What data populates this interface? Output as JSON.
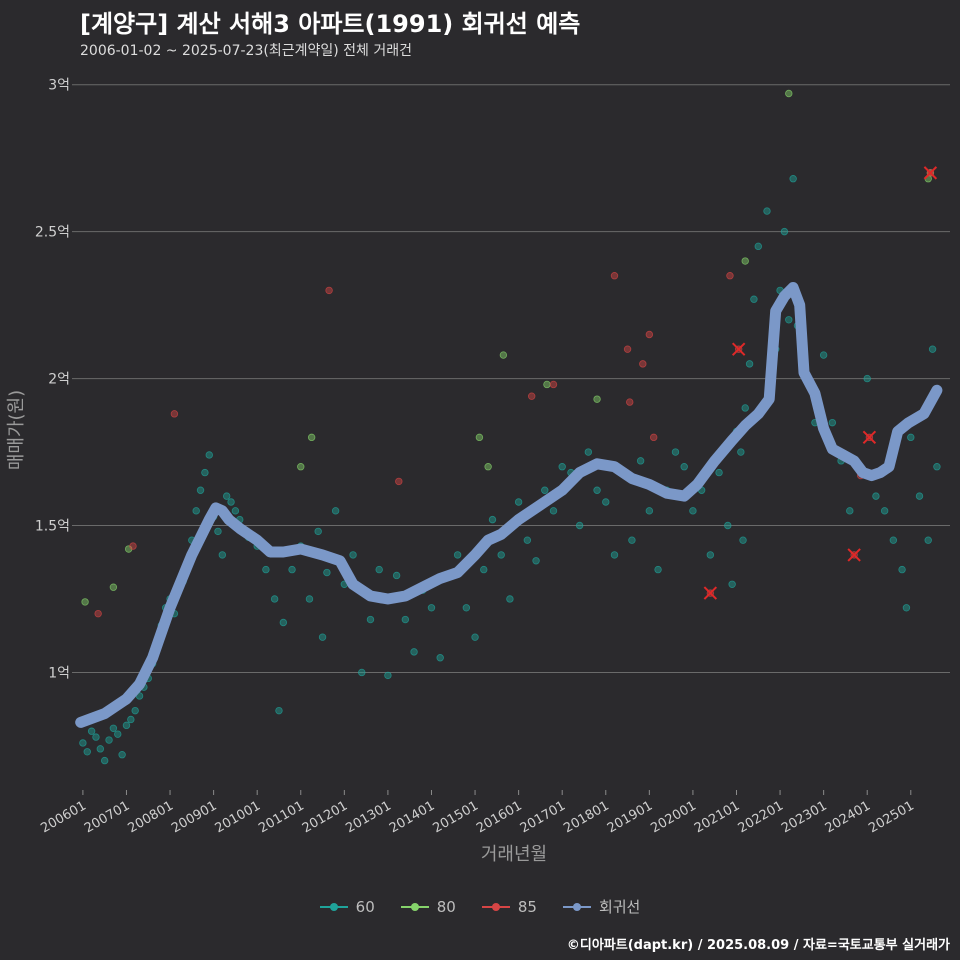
{
  "header": {
    "title": "[계양구] 계산 서해3 아파트(1991) 회귀선 예측",
    "subtitle": "2006-01-02 ~ 2025-07-23(최근계약일) 전체 거래건"
  },
  "footer": {
    "credit": "©디아파트(dapt.kr) / 2025.08.09 / 자료=국토교통부 실거래가"
  },
  "colors": {
    "s60": "#1fa39a",
    "s80": "#86d36b",
    "s85": "#d64545",
    "regression": "#7b98c8",
    "background": "#2b2a2d"
  },
  "chart_data": {
    "type": "scatter",
    "title": "[계양구] 계산 서해3 아파트(1991) 회귀선 예측",
    "subtitle": "2006-01-02 ~ 2025-07-23(최근계약일) 전체 거래건",
    "xlabel": "거래년월",
    "ylabel": "매매가(원)",
    "xlim": [
      2005.75,
      2025.9
    ],
    "ylim": [
      0.6,
      3.05
    ],
    "y_ticks": [
      1,
      1.5,
      2,
      2.5,
      3
    ],
    "y_tick_labels": [
      "1억",
      "1.5억",
      "2억",
      "2.5억",
      "3억"
    ],
    "x_ticks": [
      2006,
      2007,
      2008,
      2009,
      2010,
      2011,
      2012,
      2013,
      2014,
      2015,
      2016,
      2017,
      2018,
      2019,
      2020,
      2021,
      2022,
      2023,
      2024,
      2025
    ],
    "x_tick_labels": [
      "200601",
      "200701",
      "200801",
      "200901",
      "201001",
      "201101",
      "201201",
      "201301",
      "201401",
      "201501",
      "201601",
      "201701",
      "201801",
      "201901",
      "202001",
      "202101",
      "202201",
      "202301",
      "202401",
      "202501"
    ],
    "legend": [
      {
        "key": "s60",
        "label": "60"
      },
      {
        "key": "s80",
        "label": "80"
      },
      {
        "key": "s85",
        "label": "85"
      },
      {
        "key": "regression",
        "label": "회귀선"
      }
    ],
    "regression": {
      "name": "회귀선",
      "x": [
        2005.95,
        2006.5,
        2007.0,
        2007.3,
        2007.6,
        2008.0,
        2008.5,
        2008.9,
        2009.05,
        2009.2,
        2009.35,
        2009.6,
        2010.0,
        2010.3,
        2010.6,
        2011.0,
        2011.5,
        2011.9,
        2012.2,
        2012.6,
        2013.0,
        2013.4,
        2013.8,
        2014.2,
        2014.6,
        2015.0,
        2015.3,
        2015.6,
        2016.0,
        2016.5,
        2017.0,
        2017.4,
        2017.8,
        2018.2,
        2018.6,
        2019.0,
        2019.4,
        2019.8,
        2020.1,
        2020.5,
        2020.9,
        2021.2,
        2021.5,
        2021.75,
        2021.9,
        2022.1,
        2022.3,
        2022.45,
        2022.55,
        2022.8,
        2023.0,
        2023.2,
        2023.45,
        2023.7,
        2023.9,
        2024.1,
        2024.3,
        2024.5,
        2024.7,
        2024.95,
        2025.3,
        2025.6
      ],
      "y": [
        0.83,
        0.86,
        0.91,
        0.96,
        1.05,
        1.22,
        1.4,
        1.52,
        1.56,
        1.55,
        1.52,
        1.49,
        1.45,
        1.41,
        1.41,
        1.42,
        1.4,
        1.38,
        1.3,
        1.26,
        1.25,
        1.26,
        1.29,
        1.32,
        1.34,
        1.4,
        1.45,
        1.47,
        1.52,
        1.57,
        1.62,
        1.68,
        1.71,
        1.7,
        1.66,
        1.64,
        1.61,
        1.6,
        1.64,
        1.72,
        1.79,
        1.84,
        1.88,
        1.93,
        2.23,
        2.28,
        2.31,
        2.25,
        2.02,
        1.95,
        1.83,
        1.76,
        1.74,
        1.72,
        1.68,
        1.67,
        1.68,
        1.7,
        1.82,
        1.85,
        1.88,
        1.96
      ]
    },
    "series": [
      {
        "name": "60",
        "color": "#1fa39a",
        "points": [
          [
            2006.0,
            0.76
          ],
          [
            2006.1,
            0.73
          ],
          [
            2006.2,
            0.8
          ],
          [
            2006.3,
            0.78
          ],
          [
            2006.4,
            0.74
          ],
          [
            2006.5,
            0.7
          ],
          [
            2006.6,
            0.77
          ],
          [
            2006.7,
            0.81
          ],
          [
            2006.8,
            0.79
          ],
          [
            2006.9,
            0.72
          ],
          [
            2007.0,
            0.82
          ],
          [
            2007.1,
            0.84
          ],
          [
            2007.2,
            0.87
          ],
          [
            2007.3,
            0.92
          ],
          [
            2007.4,
            0.95
          ],
          [
            2007.5,
            0.98
          ],
          [
            2007.6,
            1.03
          ],
          [
            2007.7,
            1.1
          ],
          [
            2007.8,
            1.16
          ],
          [
            2007.9,
            1.22
          ],
          [
            2008.0,
            1.25
          ],
          [
            2008.1,
            1.2
          ],
          [
            2008.2,
            1.28
          ],
          [
            2008.3,
            1.31
          ],
          [
            2008.4,
            1.35
          ],
          [
            2008.5,
            1.45
          ],
          [
            2008.6,
            1.55
          ],
          [
            2008.7,
            1.62
          ],
          [
            2008.8,
            1.68
          ],
          [
            2008.9,
            1.74
          ],
          [
            2009.0,
            1.53
          ],
          [
            2009.1,
            1.48
          ],
          [
            2009.2,
            1.4
          ],
          [
            2009.3,
            1.6
          ],
          [
            2009.4,
            1.58
          ],
          [
            2009.5,
            1.55
          ],
          [
            2009.6,
            1.52
          ],
          [
            2009.8,
            1.46
          ],
          [
            2010.0,
            1.43
          ],
          [
            2010.2,
            1.35
          ],
          [
            2010.4,
            1.25
          ],
          [
            2010.5,
            0.87
          ],
          [
            2010.6,
            1.17
          ],
          [
            2010.8,
            1.35
          ],
          [
            2011.0,
            1.43
          ],
          [
            2011.2,
            1.25
          ],
          [
            2011.4,
            1.48
          ],
          [
            2011.5,
            1.12
          ],
          [
            2011.6,
            1.34
          ],
          [
            2011.8,
            1.55
          ],
          [
            2012.0,
            1.3
          ],
          [
            2012.2,
            1.4
          ],
          [
            2012.4,
            1.0
          ],
          [
            2012.6,
            1.18
          ],
          [
            2012.8,
            1.35
          ],
          [
            2013.0,
            0.99
          ],
          [
            2013.2,
            1.33
          ],
          [
            2013.4,
            1.18
          ],
          [
            2013.6,
            1.07
          ],
          [
            2013.8,
            1.28
          ],
          [
            2014.0,
            1.22
          ],
          [
            2014.2,
            1.05
          ],
          [
            2014.4,
            1.33
          ],
          [
            2014.6,
            1.4
          ],
          [
            2014.8,
            1.22
          ],
          [
            2015.0,
            1.12
          ],
          [
            2015.2,
            1.35
          ],
          [
            2015.4,
            1.52
          ],
          [
            2015.6,
            1.4
          ],
          [
            2015.8,
            1.25
          ],
          [
            2016.0,
            1.58
          ],
          [
            2016.2,
            1.45
          ],
          [
            2016.4,
            1.38
          ],
          [
            2016.6,
            1.62
          ],
          [
            2016.8,
            1.55
          ],
          [
            2017.0,
            1.7
          ],
          [
            2017.2,
            1.68
          ],
          [
            2017.4,
            1.5
          ],
          [
            2017.6,
            1.75
          ],
          [
            2017.8,
            1.62
          ],
          [
            2018.0,
            1.58
          ],
          [
            2018.2,
            1.4
          ],
          [
            2018.4,
            1.68
          ],
          [
            2018.6,
            1.45
          ],
          [
            2018.8,
            1.72
          ],
          [
            2019.0,
            1.55
          ],
          [
            2019.2,
            1.35
          ],
          [
            2019.4,
            1.62
          ],
          [
            2019.6,
            1.75
          ],
          [
            2019.8,
            1.7
          ],
          [
            2020.0,
            1.55
          ],
          [
            2020.2,
            1.62
          ],
          [
            2020.4,
            1.4
          ],
          [
            2020.6,
            1.68
          ],
          [
            2020.8,
            1.5
          ],
          [
            2020.9,
            1.3
          ],
          [
            2021.0,
            1.82
          ],
          [
            2021.1,
            1.75
          ],
          [
            2021.15,
            1.45
          ],
          [
            2021.2,
            1.9
          ],
          [
            2021.3,
            2.05
          ],
          [
            2021.4,
            2.27
          ],
          [
            2021.5,
            2.45
          ],
          [
            2021.7,
            2.57
          ],
          [
            2021.9,
            2.1
          ],
          [
            2022.0,
            2.3
          ],
          [
            2022.1,
            2.5
          ],
          [
            2022.2,
            2.2
          ],
          [
            2022.3,
            2.68
          ],
          [
            2022.4,
            2.18
          ],
          [
            2022.6,
            2.0
          ],
          [
            2022.8,
            1.85
          ],
          [
            2023.0,
            2.08
          ],
          [
            2023.2,
            1.85
          ],
          [
            2023.4,
            1.72
          ],
          [
            2023.6,
            1.55
          ],
          [
            2023.8,
            1.7
          ],
          [
            2024.0,
            2.0
          ],
          [
            2024.2,
            1.6
          ],
          [
            2024.4,
            1.55
          ],
          [
            2024.6,
            1.45
          ],
          [
            2024.8,
            1.35
          ],
          [
            2024.9,
            1.22
          ],
          [
            2025.0,
            1.8
          ],
          [
            2025.2,
            1.6
          ],
          [
            2025.4,
            1.45
          ],
          [
            2025.5,
            2.1
          ],
          [
            2025.6,
            1.7
          ]
        ]
      },
      {
        "name": "80",
        "color": "#86d36b",
        "points": [
          [
            2006.05,
            1.24
          ],
          [
            2006.7,
            1.29
          ],
          [
            2007.05,
            1.42
          ],
          [
            2011.0,
            1.7
          ],
          [
            2011.25,
            1.8
          ],
          [
            2015.1,
            1.8
          ],
          [
            2015.3,
            1.7
          ],
          [
            2015.65,
            2.08
          ],
          [
            2016.65,
            1.98
          ],
          [
            2017.8,
            1.93
          ],
          [
            2021.2,
            2.4
          ],
          [
            2022.2,
            2.97
          ],
          [
            2025.45,
            2.7
          ],
          [
            2025.4,
            2.68
          ]
        ]
      },
      {
        "name": "85",
        "color": "#d64545",
        "points": [
          [
            2006.35,
            1.2
          ],
          [
            2007.15,
            1.43
          ],
          [
            2008.1,
            1.88
          ],
          [
            2011.65,
            2.3
          ],
          [
            2013.25,
            1.65
          ],
          [
            2016.3,
            1.94
          ],
          [
            2016.8,
            1.98
          ],
          [
            2018.2,
            2.35
          ],
          [
            2018.5,
            2.1
          ],
          [
            2018.85,
            2.05
          ],
          [
            2019.0,
            2.15
          ],
          [
            2019.1,
            1.8
          ],
          [
            2018.55,
            1.92
          ],
          [
            2020.85,
            2.35
          ],
          [
            2020.4,
            1.27
          ],
          [
            2021.05,
            2.1
          ],
          [
            2023.7,
            1.4
          ],
          [
            2024.05,
            1.8
          ],
          [
            2023.85,
            1.67
          ],
          [
            2025.45,
            2.7
          ]
        ]
      }
    ],
    "highlight_markers": {
      "name": "85 highlighted transactions",
      "points": [
        [
          2020.4,
          1.27
        ],
        [
          2021.05,
          2.1
        ],
        [
          2023.7,
          1.4
        ],
        [
          2024.05,
          1.8
        ],
        [
          2025.45,
          2.7
        ]
      ]
    }
  }
}
